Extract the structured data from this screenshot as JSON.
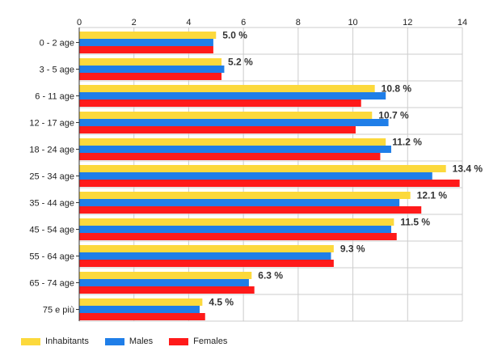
{
  "chart_data": {
    "type": "bar",
    "orientation": "horizontal",
    "title": "",
    "xlabel": "",
    "ylabel": "",
    "xlim": [
      0,
      14
    ],
    "x_ticks": [
      "0",
      "2",
      "4",
      "6",
      "8",
      "10",
      "12",
      "14"
    ],
    "x_tick_values": [
      0,
      2,
      4,
      6,
      8,
      10,
      12,
      14
    ],
    "axis_position": "top",
    "grid": true,
    "legend_position": "bottom-left",
    "categories": [
      "0 - 2 age",
      "3 - 5 age",
      "6 - 11 age",
      "12 - 17 age",
      "18 - 24 age",
      "25 - 34 age",
      "35 - 44 age",
      "45 - 54 age",
      "55 - 64 age",
      "65 - 74 age",
      "75 e più"
    ],
    "series": [
      {
        "name": "Inhabitants",
        "color": "#fcd93c",
        "values": [
          5.0,
          5.2,
          10.8,
          10.7,
          11.2,
          13.4,
          12.1,
          11.5,
          9.3,
          6.3,
          4.5
        ]
      },
      {
        "name": "Males",
        "color": "#1f7ee8",
        "values": [
          4.9,
          5.3,
          11.2,
          11.3,
          11.4,
          12.9,
          11.7,
          11.4,
          9.2,
          6.2,
          4.4
        ]
      },
      {
        "name": "Females",
        "color": "#ff1a1a",
        "values": [
          4.9,
          5.2,
          10.3,
          10.1,
          11.0,
          13.9,
          12.5,
          11.6,
          9.3,
          6.4,
          4.6
        ]
      }
    ],
    "data_labels": [
      "5.0 %",
      "5.2 %",
      "10.8 %",
      "10.7 %",
      "11.2 %",
      "13.4 %",
      "12.1 %",
      "11.5 %",
      "9.3 %",
      "6.3 %",
      "4.5 %"
    ]
  }
}
